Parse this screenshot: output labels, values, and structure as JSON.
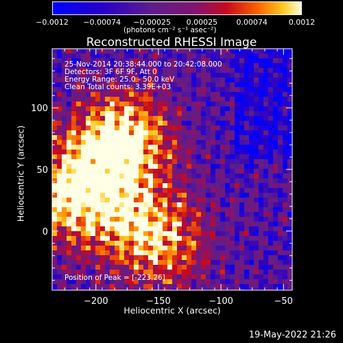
{
  "chart_data": {
    "type": "heatmap",
    "title": "Reconstructed RHESSI Image",
    "xlabel": "Heliocentric X (arcsec)",
    "ylabel": "Heliocentric Y (arcsec)",
    "xlim": [
      -235,
      -43
    ],
    "ylim": [
      -48,
      148
    ],
    "x_ticks": [
      -200,
      -150,
      -100,
      -50
    ],
    "y_ticks": [
      0,
      50,
      100
    ],
    "colorbar": {
      "range": [
        -0.0012,
        0.0012
      ],
      "tick_labels": [
        "-0.0012",
        "-0.00074",
        "-0.00025",
        "0.00025",
        "0.00074",
        "0.0012"
      ],
      "unit_label": "(photons cm⁻² s⁻¹ asec⁻²)"
    },
    "annotations": {
      "time": "25-Nov-2014 20:38:44.000 to 20:42:08.000",
      "detectors": "Detectors: 3F 6F 9F, Att 0",
      "energy": "Energy Range: 25.0 - 50.0 keV",
      "clean": "Clean     Total counts: 3.39E+03",
      "peak": "Position of Peak = [-223,26]"
    },
    "peak_position": [
      -223,
      26
    ],
    "bright_sources": [
      {
        "x": -225,
        "y": 30,
        "level": 1.0
      },
      {
        "x": -175,
        "y": 80,
        "level": 0.8
      },
      {
        "x": -165,
        "y": 5,
        "level": 0.7
      },
      {
        "x": -190,
        "y": 60,
        "level": 0.55
      },
      {
        "x": -140,
        "y": -10,
        "level": 0.45
      }
    ]
  },
  "footer": {
    "timestamp": "19-May-2022 21:26"
  }
}
